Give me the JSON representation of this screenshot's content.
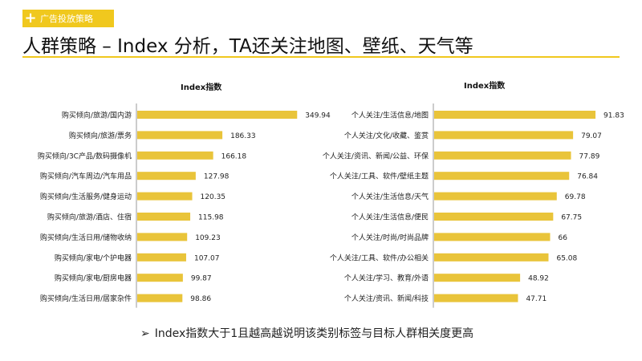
{
  "header": {
    "tag_label": "广告投放策略",
    "tag_plus": "+",
    "title": "人群策略 – Index 分析，TA还关注地图、壁纸、天气等"
  },
  "footer": {
    "arrow": "➢",
    "note": "Index指数大于1且越高越说明该类别标签与目标人群相关度更高"
  },
  "colors": {
    "accent": "#f0c81e",
    "bar": "#e9c43a",
    "axis": "#999999"
  },
  "chart_data": [
    {
      "type": "bar",
      "orientation": "horizontal",
      "title": "Index指数",
      "categories": [
        "购买倾向/旅游/国内游",
        "购买倾向/旅游/票务",
        "购买倾向/3C产品/数码摄像机",
        "购买倾向/汽车周边/汽车用品",
        "购买倾向/生活服务/健身运动",
        "购买倾向/旅游/酒店、住宿",
        "购买倾向/生活日用/储物收纳",
        "购买倾向/家电/个护电器",
        "购买倾向/家电/厨房电器",
        "购买倾向/生活日用/居家杂件"
      ],
      "values": [
        349.94,
        186.33,
        166.18,
        127.98,
        120.35,
        115.98,
        109.23,
        107.07,
        99.87,
        98.86
      ],
      "value_labels": [
        "349.94",
        "186.33",
        "166.18",
        "127.98",
        "120.35",
        "115.98",
        "109.23",
        "107.07",
        "99.87",
        "98.86"
      ],
      "xlim": [
        0,
        360
      ]
    },
    {
      "type": "bar",
      "orientation": "horizontal",
      "title": "Index指数",
      "categories": [
        "个人关注/生活信息/地图",
        "个人关注/文化/收藏、鉴赏",
        "个人关注/资讯、新闻/公益、环保",
        "个人关注/工具、软件/壁纸主题",
        "个人关注/生活信息/天气",
        "个人关注/生活信息/便民",
        "个人关注/时尚/时尚品牌",
        "个人关注/工具、软件/办公相关",
        "个人关注/学习、教育/外语",
        "个人关注/资讯、新闻/科技"
      ],
      "values": [
        91.83,
        79.07,
        77.89,
        76.84,
        69.78,
        67.75,
        66,
        65.08,
        48.92,
        47.71
      ],
      "value_labels": [
        "91.83",
        "79.07",
        "77.89",
        "76.84",
        "69.78",
        "67.75",
        "66",
        "65.08",
        "48.92",
        "47.71"
      ],
      "xlim": [
        0,
        95
      ]
    }
  ]
}
